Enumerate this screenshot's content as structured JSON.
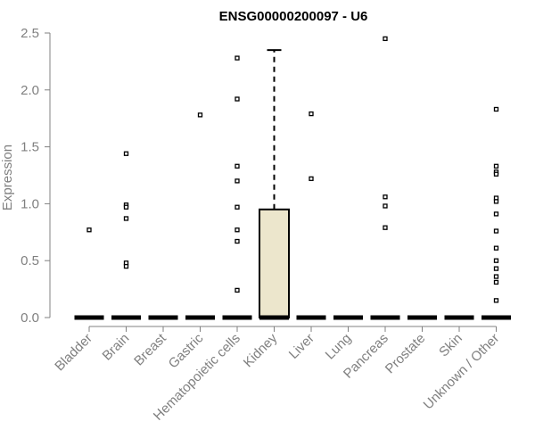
{
  "chart_data": {
    "type": "boxplot",
    "title": "ENSG00000200097 - U6",
    "xlabel": "",
    "ylabel": "Expression",
    "ylim": [
      0,
      2.5
    ],
    "yticks": [
      "0.0",
      "0.5",
      "1.0",
      "1.5",
      "2.0",
      "2.5"
    ],
    "grid": false,
    "categories": [
      "Bladder",
      "Brain",
      "Breast",
      "Gastric",
      "Hematopoietic cells",
      "Kidney",
      "Liver",
      "Lung",
      "Pancreas",
      "Prostate",
      "Skin",
      "Unknown / Other"
    ],
    "boxes": [
      {
        "category": "Bladder",
        "q1": 0,
        "median": 0,
        "q3": 0,
        "whisker_low": 0,
        "whisker_high": 0,
        "outliers": [
          0.77
        ]
      },
      {
        "category": "Brain",
        "q1": 0,
        "median": 0,
        "q3": 0,
        "whisker_low": 0,
        "whisker_high": 0,
        "outliers": [
          1.44,
          0.99,
          0.97,
          0.87,
          0.48,
          0.45
        ]
      },
      {
        "category": "Breast",
        "q1": 0,
        "median": 0,
        "q3": 0,
        "whisker_low": 0,
        "whisker_high": 0,
        "outliers": []
      },
      {
        "category": "Gastric",
        "q1": 0,
        "median": 0,
        "q3": 0,
        "whisker_low": 0,
        "whisker_high": 0,
        "outliers": [
          1.78
        ]
      },
      {
        "category": "Hematopoietic cells",
        "q1": 0,
        "median": 0,
        "q3": 0,
        "whisker_low": 0,
        "whisker_high": 0,
        "outliers": [
          2.28,
          1.92,
          1.33,
          1.2,
          0.97,
          0.77,
          0.67,
          0.24
        ]
      },
      {
        "category": "Kidney",
        "q1": 0,
        "median": 0,
        "q3": 0.95,
        "whisker_low": 0,
        "whisker_high": 2.35,
        "outliers": []
      },
      {
        "category": "Liver",
        "q1": 0,
        "median": 0,
        "q3": 0,
        "whisker_low": 0,
        "whisker_high": 0,
        "outliers": [
          1.79,
          1.22
        ]
      },
      {
        "category": "Lung",
        "q1": 0,
        "median": 0,
        "q3": 0,
        "whisker_low": 0,
        "whisker_high": 0,
        "outliers": []
      },
      {
        "category": "Pancreas",
        "q1": 0,
        "median": 0,
        "q3": 0,
        "whisker_low": 0,
        "whisker_high": 0,
        "outliers": [
          2.45,
          1.06,
          0.98,
          0.79
        ]
      },
      {
        "category": "Prostate",
        "q1": 0,
        "median": 0,
        "q3": 0,
        "whisker_low": 0,
        "whisker_high": 0,
        "outliers": []
      },
      {
        "category": "Skin",
        "q1": 0,
        "median": 0,
        "q3": 0,
        "whisker_low": 0,
        "whisker_high": 0,
        "outliers": []
      },
      {
        "category": "Unknown / Other",
        "q1": 0,
        "median": 0,
        "q3": 0,
        "whisker_low": 0,
        "whisker_high": 0,
        "outliers": [
          1.83,
          1.33,
          1.28,
          1.26,
          1.05,
          1.02,
          0.91,
          0.76,
          0.61,
          0.5,
          0.43,
          0.36,
          0.31,
          0.15
        ]
      }
    ],
    "colors": {
      "box_fill": "#ece6cc",
      "box_stroke": "#000000",
      "axis": "#808080",
      "text": "#808080",
      "title": "#000000"
    }
  }
}
